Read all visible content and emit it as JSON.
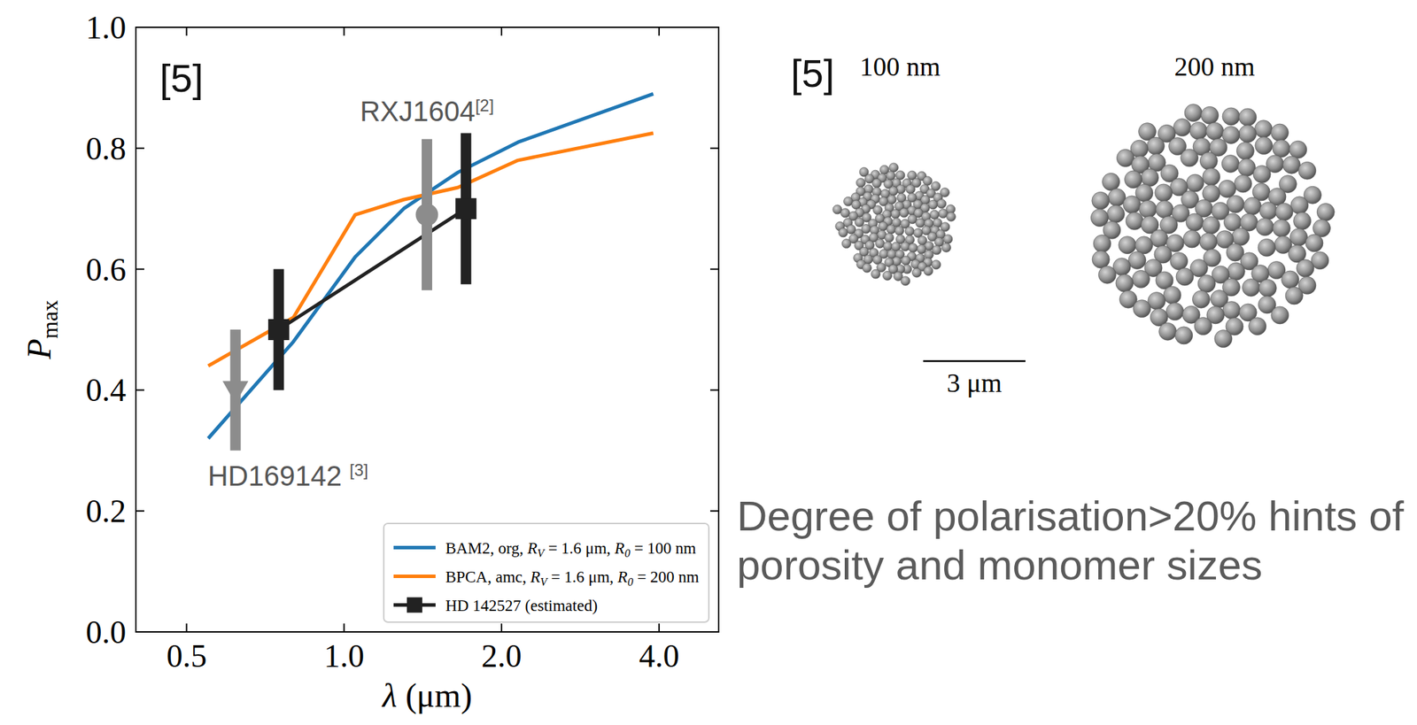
{
  "chart_data": {
    "type": "line",
    "panel_label": "[5]",
    "xlabel": "λ (μm)",
    "ylabel": "Pmax",
    "log": "x",
    "xlim": [
      0.4,
      5.2
    ],
    "xticks": [
      {
        "value": 0.5,
        "label": "0.5"
      },
      {
        "value": 1,
        "label": "1.0"
      },
      {
        "value": 2,
        "label": "2.0"
      },
      {
        "value": 4,
        "label": "4.0"
      }
    ],
    "ylim": [
      0,
      1
    ],
    "yticks": [
      {
        "value": 0,
        "label": "0.0"
      },
      {
        "value": 0.2,
        "label": "0.2"
      },
      {
        "value": 0.4,
        "label": "0.4"
      },
      {
        "value": 0.6,
        "label": "0.6"
      },
      {
        "value": 0.8,
        "label": "0.8"
      },
      {
        "value": 1,
        "label": "1.0"
      }
    ],
    "legend": "lower right",
    "series": [
      {
        "name": "BAM2, org, RV = 1.6 μm, R0 = 100 nm",
        "color": "#1f77b4",
        "type": "line",
        "x": [
          0.55,
          0.8,
          1.05,
          1.3,
          1.65,
          2.15,
          3.9
        ],
        "values": [
          0.32,
          0.48,
          0.62,
          0.7,
          0.76,
          0.81,
          0.89
        ]
      },
      {
        "name": "BPCA, amc, RV = 1.6 μm, R0 = 200 nm",
        "color": "#ff7f0e",
        "type": "line",
        "x": [
          0.55,
          0.8,
          1.05,
          1.3,
          1.65,
          2.15,
          3.9
        ],
        "values": [
          0.44,
          0.52,
          0.69,
          0.715,
          0.735,
          0.78,
          0.825
        ]
      },
      {
        "name": "HD 142527 (estimated)",
        "color": "#222222",
        "type": "line",
        "marker": "square",
        "x": [
          0.75,
          1.71
        ],
        "values": [
          0.5,
          0.7
        ],
        "errors": [
          0.1,
          0.125
        ]
      }
    ],
    "annotations": [
      {
        "text": "RXJ1604[2]",
        "x": 1.44,
        "value": 0.69,
        "error": 0.125,
        "marker": "circle",
        "color": "#8c8c8c"
      },
      {
        "text": "HD169142 [3]",
        "x": 0.62,
        "value": 0.4,
        "error": 0.1,
        "marker": "triangle-down",
        "color": "#8c8c8c"
      }
    ]
  },
  "figure": {
    "panel_label": "[5]",
    "aggregates": [
      {
        "label": "100 nm"
      },
      {
        "label": "200 nm"
      }
    ],
    "scale_bar": "3 μm",
    "note": "Degree of polarisation>20% hints of porosity and monomer sizes"
  }
}
